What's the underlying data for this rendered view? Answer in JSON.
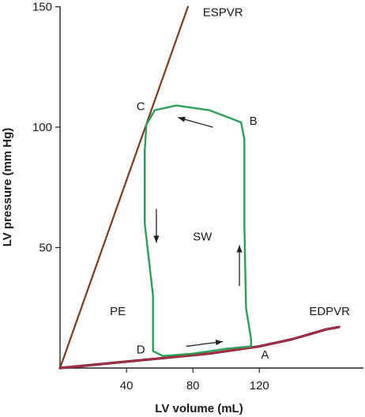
{
  "chart_data": {
    "type": "line",
    "title": "",
    "xlabel": "LV volume (mL)",
    "ylabel": "LV pressure (mm Hg)",
    "xlim": [
      0,
      182
    ],
    "ylim": [
      0,
      150
    ],
    "x_ticks": [
      40,
      80,
      120
    ],
    "y_ticks": [
      50,
      100,
      150
    ],
    "x_tick_labels": [
      "40",
      "80",
      "120"
    ],
    "y_tick_labels": [
      "50",
      "100",
      "150"
    ],
    "grid": false,
    "colors": {
      "espvr": "#7a3b1e",
      "edpvr_outer": "#7a1e2e",
      "edpvr_inner": "#c13550",
      "loop": "#2e9e5a",
      "axis": "#222222",
      "arrow": "#222222"
    },
    "series": [
      {
        "name": "ESPVR",
        "points": [
          [
            0,
            0
          ],
          [
            77,
            150
          ]
        ]
      },
      {
        "name": "EDPVR",
        "points": [
          [
            0,
            0
          ],
          [
            30,
            2
          ],
          [
            60,
            4
          ],
          [
            90,
            6
          ],
          [
            120,
            9
          ],
          [
            140,
            12
          ],
          [
            160,
            16
          ],
          [
            168,
            17
          ]
        ]
      },
      {
        "name": "PV loop",
        "points": [
          [
            56,
            7
          ],
          [
            56,
            30
          ],
          [
            51,
            60
          ],
          [
            51,
            90
          ],
          [
            52,
            101
          ],
          [
            57,
            107
          ],
          [
            70,
            109
          ],
          [
            90,
            107
          ],
          [
            109,
            102
          ],
          [
            111,
            95
          ],
          [
            111,
            60
          ],
          [
            112,
            25
          ],
          [
            115,
            12
          ],
          [
            115,
            9
          ],
          [
            100,
            8
          ],
          [
            80,
            6
          ],
          [
            62,
            5
          ],
          [
            59,
            6
          ],
          [
            56,
            7
          ]
        ]
      }
    ],
    "annotations": [
      {
        "text": "ESPVR",
        "x": 86,
        "y": 146
      },
      {
        "text": "EDPVR",
        "x": 150,
        "y": 22
      },
      {
        "text": "A",
        "x": 121,
        "y": 4
      },
      {
        "text": "B",
        "x": 114,
        "y": 101
      },
      {
        "text": "C",
        "x": 46,
        "y": 107
      },
      {
        "text": "D",
        "x": 46,
        "y": 6
      },
      {
        "text": "SW",
        "x": 80,
        "y": 53
      },
      {
        "text": "PE",
        "x": 30,
        "y": 22
      }
    ],
    "arrows": [
      {
        "from": [
          92,
          100
        ],
        "to": [
          71,
          104
        ]
      },
      {
        "from": [
          58,
          66
        ],
        "to": [
          58,
          52
        ]
      },
      {
        "from": [
          108,
          34
        ],
        "to": [
          108,
          51
        ]
      },
      {
        "from": [
          76,
          9
        ],
        "to": [
          98,
          11
        ]
      }
    ]
  }
}
